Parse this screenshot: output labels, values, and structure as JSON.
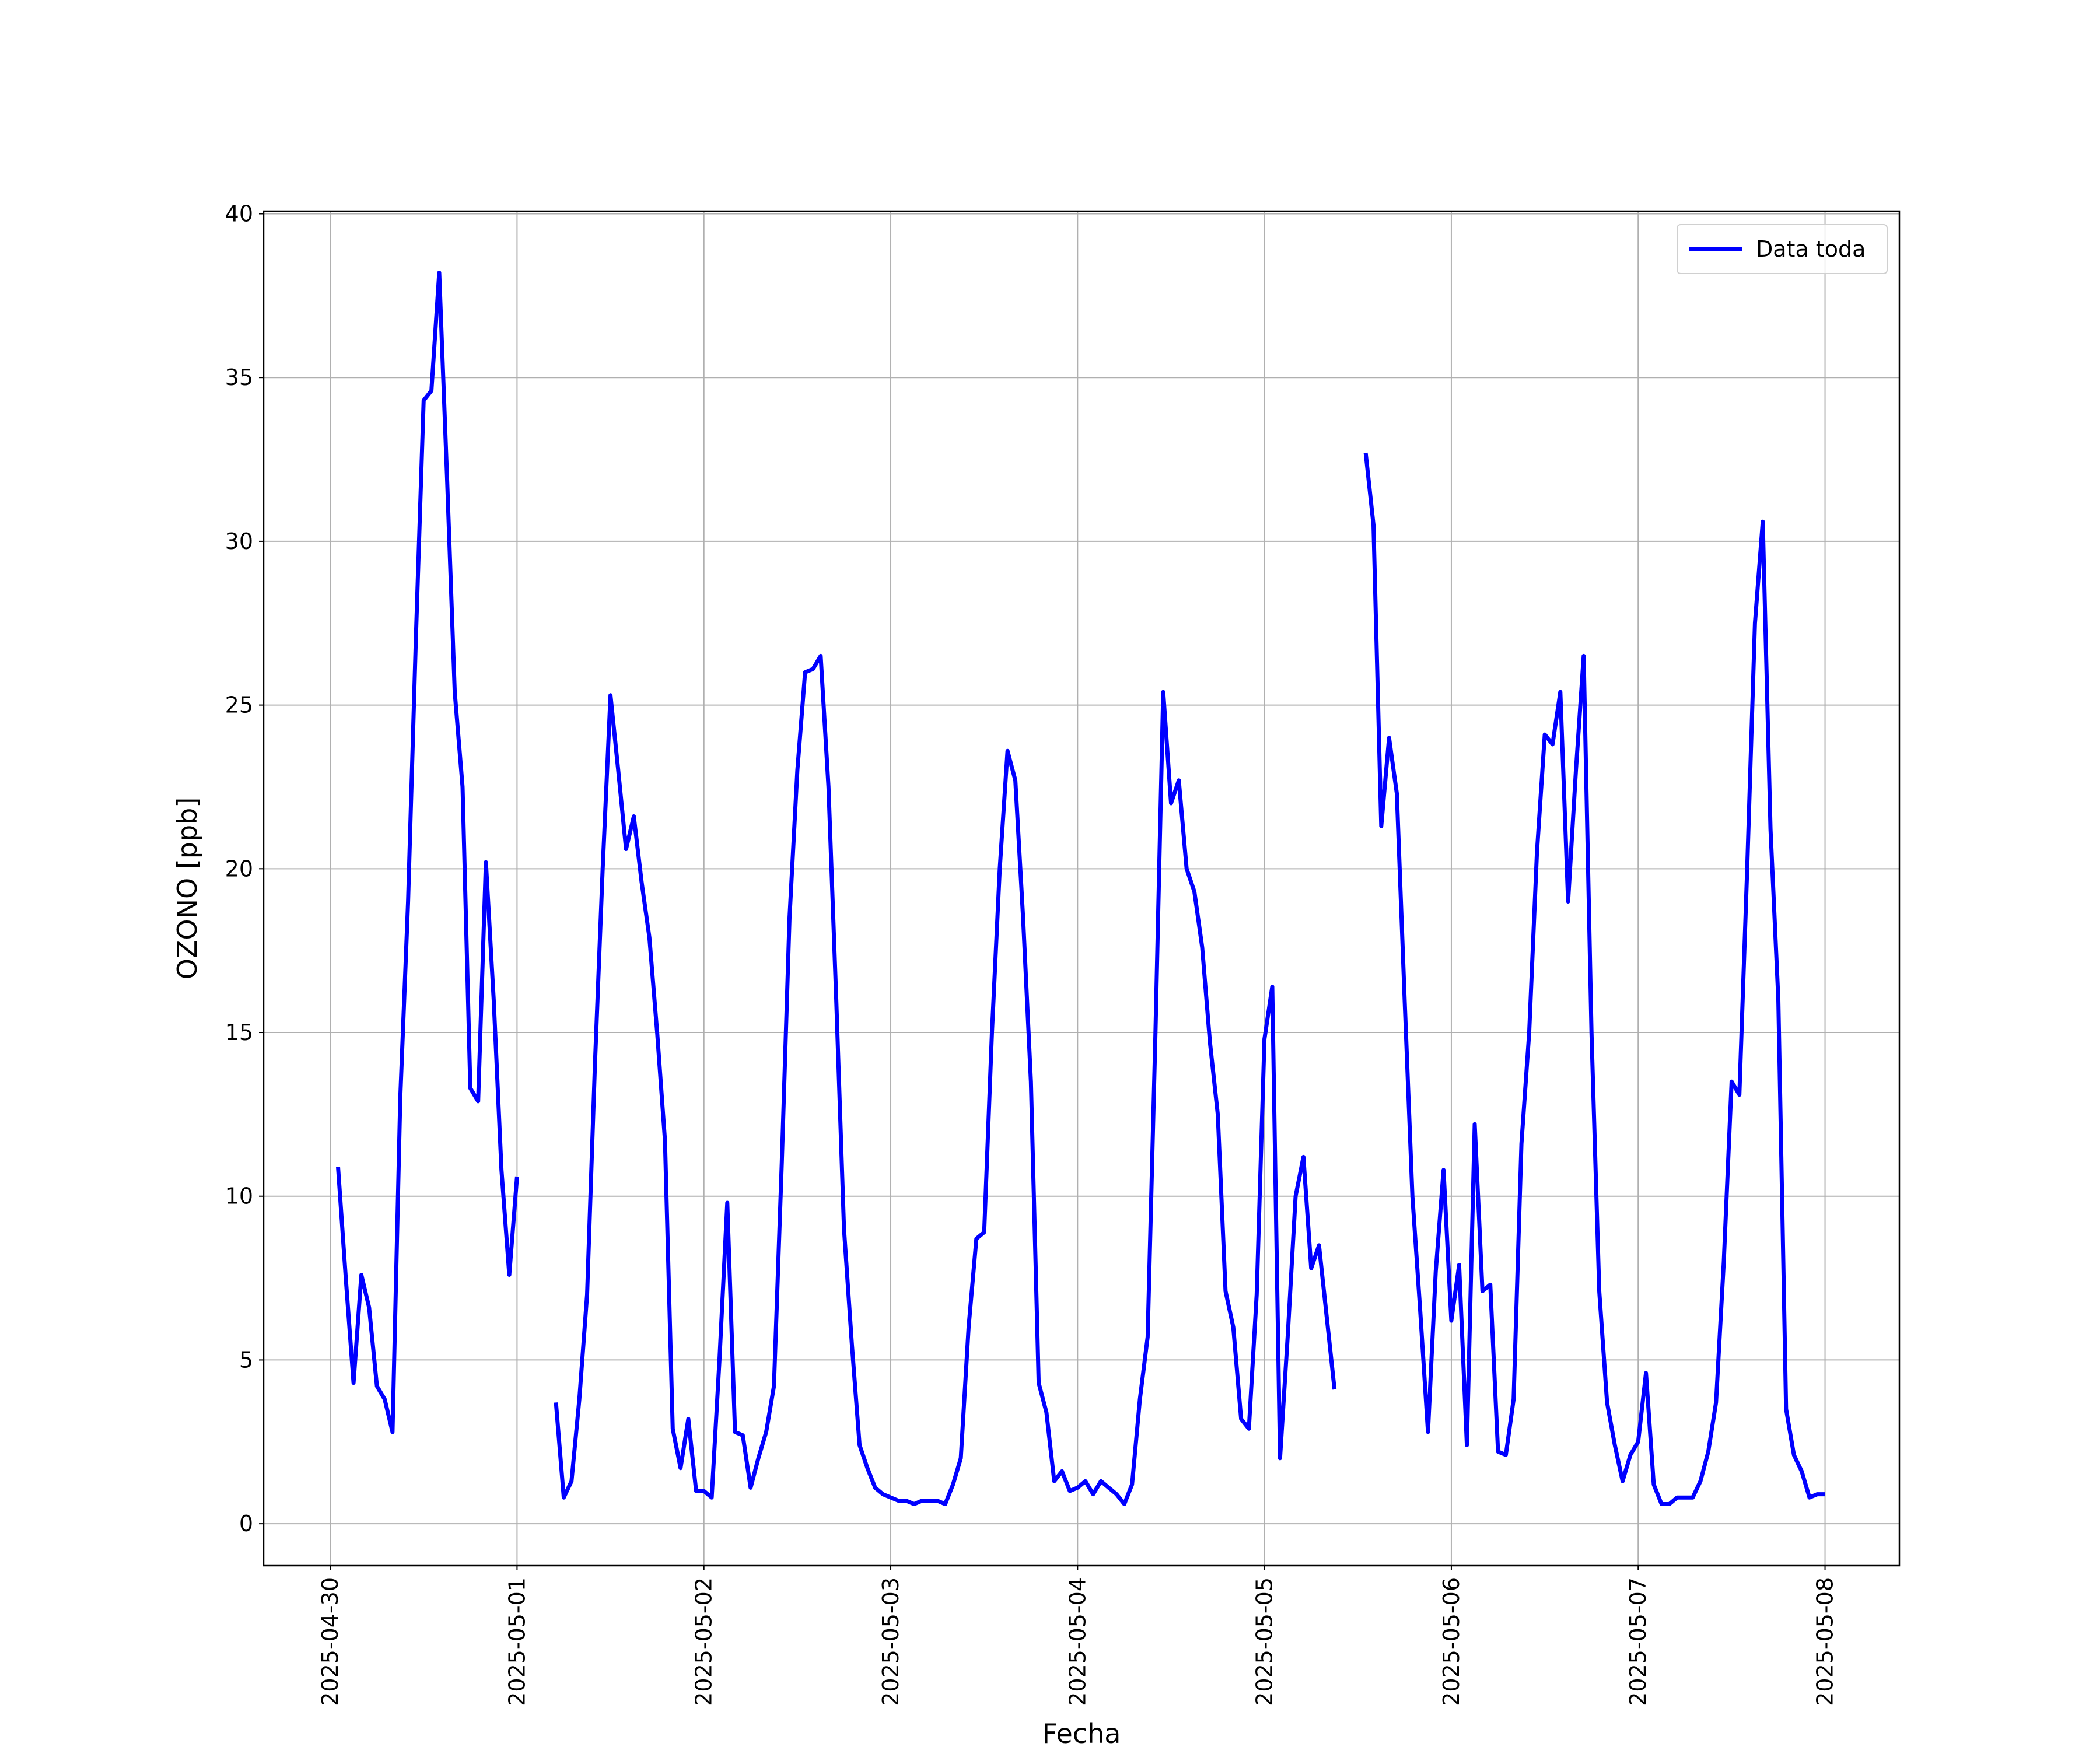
{
  "chart_data": {
    "type": "line",
    "xlabel": "Fecha",
    "ylabel": "OZONO [ppb]",
    "x": [
      "2025-04-30 01:00",
      "2025-04-30 02:00",
      "2025-04-30 03:00",
      "2025-04-30 04:00",
      "2025-04-30 05:00",
      "2025-04-30 06:00",
      "2025-04-30 07:00",
      "2025-04-30 08:00",
      "2025-04-30 09:00",
      "2025-04-30 10:00",
      "2025-04-30 11:00",
      "2025-04-30 12:00",
      "2025-04-30 13:00",
      "2025-04-30 14:00",
      "2025-04-30 15:00",
      "2025-04-30 16:00",
      "2025-04-30 17:00",
      "2025-04-30 18:00",
      "2025-04-30 19:00",
      "2025-04-30 20:00",
      "2025-04-30 21:00",
      "2025-04-30 22:00",
      "2025-04-30 23:00",
      "2025-05-01 00:00",
      "2025-05-01 01:00",
      "2025-05-01 02:00",
      "2025-05-01 03:00",
      "2025-05-01 04:00",
      "2025-05-01 05:00",
      "2025-05-01 06:00",
      "2025-05-01 07:00",
      "2025-05-01 08:00",
      "2025-05-01 09:00",
      "2025-05-01 10:00",
      "2025-05-01 11:00",
      "2025-05-01 12:00",
      "2025-05-01 13:00",
      "2025-05-01 14:00",
      "2025-05-01 15:00",
      "2025-05-01 16:00",
      "2025-05-01 17:00",
      "2025-05-01 18:00",
      "2025-05-01 19:00",
      "2025-05-01 20:00",
      "2025-05-01 21:00",
      "2025-05-01 22:00",
      "2025-05-01 23:00",
      "2025-05-02 00:00",
      "2025-05-02 01:00",
      "2025-05-02 02:00",
      "2025-05-02 03:00",
      "2025-05-02 04:00",
      "2025-05-02 05:00",
      "2025-05-02 06:00",
      "2025-05-02 07:00",
      "2025-05-02 08:00",
      "2025-05-02 09:00",
      "2025-05-02 10:00",
      "2025-05-02 11:00",
      "2025-05-02 12:00",
      "2025-05-02 13:00",
      "2025-05-02 14:00",
      "2025-05-02 15:00",
      "2025-05-02 16:00",
      "2025-05-02 17:00",
      "2025-05-02 18:00",
      "2025-05-02 19:00",
      "2025-05-02 20:00",
      "2025-05-02 21:00",
      "2025-05-02 22:00",
      "2025-05-02 23:00",
      "2025-05-03 00:00",
      "2025-05-03 01:00",
      "2025-05-03 02:00",
      "2025-05-03 03:00",
      "2025-05-03 04:00",
      "2025-05-03 05:00",
      "2025-05-03 06:00",
      "2025-05-03 07:00",
      "2025-05-03 08:00",
      "2025-05-03 09:00",
      "2025-05-03 10:00",
      "2025-05-03 11:00",
      "2025-05-03 12:00",
      "2025-05-03 13:00",
      "2025-05-03 14:00",
      "2025-05-03 15:00",
      "2025-05-03 16:00",
      "2025-05-03 17:00",
      "2025-05-03 18:00",
      "2025-05-03 19:00",
      "2025-05-03 20:00",
      "2025-05-03 21:00",
      "2025-05-03 22:00",
      "2025-05-03 23:00",
      "2025-05-04 00:00",
      "2025-05-04 01:00",
      "2025-05-04 02:00",
      "2025-05-04 03:00",
      "2025-05-04 04:00",
      "2025-05-04 05:00",
      "2025-05-04 06:00",
      "2025-05-04 07:00",
      "2025-05-04 08:00",
      "2025-05-04 09:00",
      "2025-05-04 10:00",
      "2025-05-04 11:00",
      "2025-05-04 12:00",
      "2025-05-04 13:00",
      "2025-05-04 14:00",
      "2025-05-04 15:00",
      "2025-05-04 16:00",
      "2025-05-04 17:00",
      "2025-05-04 18:00",
      "2025-05-04 19:00",
      "2025-05-04 20:00",
      "2025-05-04 21:00",
      "2025-05-04 22:00",
      "2025-05-04 23:00",
      "2025-05-05 00:00",
      "2025-05-05 01:00",
      "2025-05-05 02:00",
      "2025-05-05 03:00",
      "2025-05-05 04:00",
      "2025-05-05 05:00",
      "2025-05-05 06:00",
      "2025-05-05 07:00",
      "2025-05-05 08:00",
      "2025-05-05 09:00",
      "2025-05-05 10:00",
      "2025-05-05 11:00",
      "2025-05-05 12:00",
      "2025-05-05 13:00",
      "2025-05-05 14:00",
      "2025-05-05 15:00",
      "2025-05-05 16:00",
      "2025-05-05 17:00",
      "2025-05-05 18:00",
      "2025-05-05 19:00",
      "2025-05-05 20:00",
      "2025-05-05 21:00",
      "2025-05-05 22:00",
      "2025-05-05 23:00",
      "2025-05-06 00:00",
      "2025-05-06 01:00",
      "2025-05-06 02:00",
      "2025-05-06 03:00",
      "2025-05-06 04:00",
      "2025-05-06 05:00",
      "2025-05-06 06:00",
      "2025-05-06 07:00",
      "2025-05-06 08:00",
      "2025-05-06 09:00",
      "2025-05-06 10:00",
      "2025-05-06 11:00",
      "2025-05-06 12:00",
      "2025-05-06 13:00",
      "2025-05-06 14:00",
      "2025-05-06 15:00",
      "2025-05-06 16:00",
      "2025-05-06 17:00",
      "2025-05-06 18:00",
      "2025-05-06 19:00",
      "2025-05-06 20:00",
      "2025-05-06 21:00",
      "2025-05-06 22:00",
      "2025-05-06 23:00",
      "2025-05-07 00:00",
      "2025-05-07 01:00",
      "2025-05-07 02:00",
      "2025-05-07 03:00",
      "2025-05-07 04:00",
      "2025-05-07 05:00",
      "2025-05-07 06:00",
      "2025-05-07 07:00",
      "2025-05-07 08:00",
      "2025-05-07 09:00",
      "2025-05-07 10:00",
      "2025-05-07 11:00",
      "2025-05-07 12:00",
      "2025-05-07 13:00",
      "2025-05-07 14:00",
      "2025-05-07 15:00",
      "2025-05-07 16:00",
      "2025-05-07 17:00",
      "2025-05-07 18:00",
      "2025-05-07 19:00",
      "2025-05-07 20:00",
      "2025-05-07 21:00",
      "2025-05-07 22:00",
      "2025-05-07 23:00",
      "2025-05-08 00:00"
    ],
    "series": [
      {
        "name": "Data toda",
        "color": "#0000ff",
        "values": [
          10.9,
          7.5,
          4.3,
          7.6,
          6.6,
          4.2,
          3.8,
          2.8,
          13,
          19,
          27,
          34.3,
          34.6,
          38.2,
          32,
          25.4,
          22.5,
          13.3,
          12.9,
          20.2,
          16,
          10.8,
          7.6,
          10.6,
          null,
          null,
          null,
          null,
          3.7,
          0.8,
          1.3,
          3.8,
          7,
          14,
          20,
          25.3,
          23,
          20.6,
          21.6,
          19.6,
          17.9,
          15,
          11.7,
          2.9,
          1.7,
          3.2,
          1.0,
          1.0,
          0.8,
          5,
          9.8,
          2.8,
          2.7,
          1.1,
          2.0,
          2.8,
          4.2,
          11,
          18.5,
          23,
          26,
          26.1,
          26.5,
          22.5,
          16,
          9,
          5.5,
          2.4,
          1.7,
          1.1,
          0.9,
          0.8,
          0.7,
          0.7,
          0.6,
          0.7,
          0.7,
          0.7,
          0.6,
          1.2,
          2.0,
          6.0,
          8.7,
          8.9,
          15,
          20,
          23.6,
          22.7,
          18.5,
          13.5,
          4.3,
          3.4,
          1.3,
          1.6,
          1.0,
          1.1,
          1.3,
          0.9,
          1.3,
          1.1,
          0.9,
          0.6,
          1.2,
          3.8,
          5.7,
          15,
          25.4,
          22,
          22.7,
          20,
          19.3,
          17.6,
          14.7,
          12.5,
          7.1,
          6.0,
          3.2,
          2.9,
          7,
          14.8,
          16.4,
          2.0,
          5.8,
          10,
          11.2,
          7.8,
          8.5,
          6.3,
          4.1,
          null,
          null,
          null,
          32.7,
          30.5,
          21.3,
          24,
          22.3,
          16,
          10,
          6.5,
          2.8,
          7.7,
          10.8,
          6.2,
          7.9,
          2.4,
          12.2,
          7.1,
          7.3,
          2.2,
          2.1,
          3.8,
          11.6,
          15,
          20.5,
          24.1,
          23.8,
          25.4,
          19,
          23,
          26.5,
          15,
          7.1,
          3.7,
          2.4,
          1.3,
          2.1,
          2.5,
          4.6,
          1.2,
          0.6,
          0.6,
          0.8,
          0.8,
          0.8,
          1.3,
          2.2,
          3.7,
          8,
          13.5,
          13.1,
          20,
          27.5,
          30.6,
          21.2,
          16,
          3.5,
          2.1,
          1.6,
          0.8,
          0.9,
          0.9
        ]
      }
    ],
    "xlim": [
      "2025-04-29 15:27",
      "2025-05-08 09:33"
    ],
    "xticks": [
      "2025-04-30",
      "2025-05-01",
      "2025-05-02",
      "2025-05-03",
      "2025-05-04",
      "2025-05-05",
      "2025-05-06",
      "2025-05-07",
      "2025-05-08"
    ],
    "ylim": [
      -1.28,
      40.08
    ],
    "yticks": [
      0,
      5,
      10,
      15,
      20,
      25,
      30,
      35,
      40
    ],
    "grid": true,
    "legend": "upper right"
  }
}
